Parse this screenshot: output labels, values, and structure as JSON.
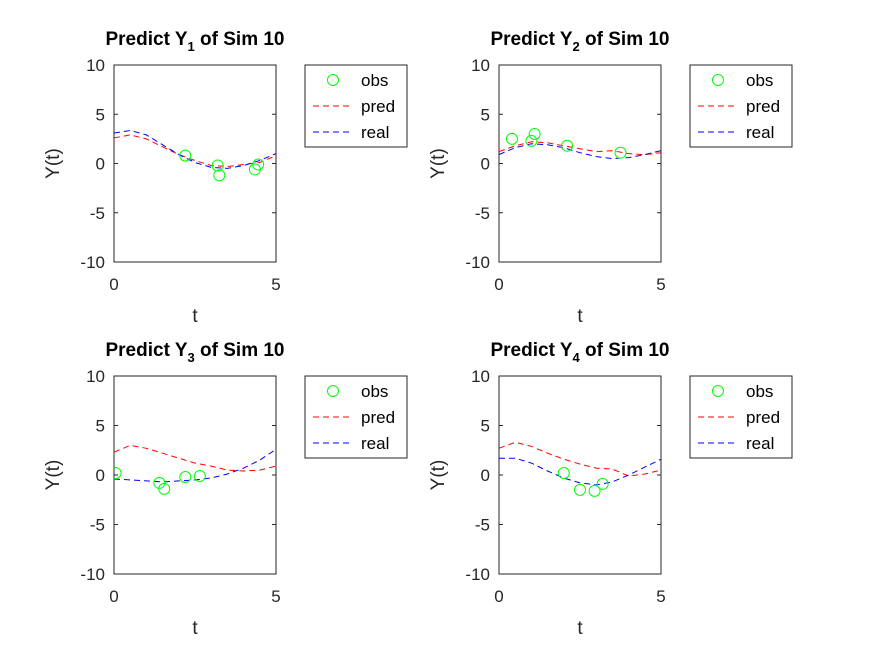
{
  "chart_data": [
    {
      "type": "line",
      "title": "Predict Y",
      "title_sub": "1",
      "title_suffix": " of Sim 10",
      "xlabel": "t",
      "ylabel": "Y(t)",
      "xlim": [
        0,
        5
      ],
      "ylim": [
        -10,
        10
      ],
      "xticks": [
        0,
        5
      ],
      "yticks": [
        10,
        5,
        0,
        -5,
        -10
      ],
      "grid": false,
      "legend_position": "outside-right",
      "series": [
        {
          "name": "obs",
          "kind": "scatter",
          "color": "#00ff00",
          "x": [
            2.2,
            3.2,
            3.25,
            4.35,
            4.45
          ],
          "y": [
            0.8,
            -0.2,
            -1.2,
            -0.6,
            -0.1
          ]
        },
        {
          "name": "pred",
          "kind": "dashed-line",
          "color": "#ff0000",
          "x": [
            0,
            0.5,
            1,
            1.5,
            2,
            2.5,
            3,
            3.5,
            4,
            4.5,
            5
          ],
          "y": [
            2.6,
            2.9,
            2.5,
            1.7,
            0.9,
            0.3,
            -0.2,
            -0.3,
            -0.1,
            0.1,
            0.8
          ]
        },
        {
          "name": "real",
          "kind": "dashed-line",
          "color": "#0000ff",
          "x": [
            0,
            0.5,
            1,
            1.5,
            2,
            2.5,
            3,
            3.5,
            4,
            4.5,
            5
          ],
          "y": [
            3.1,
            3.35,
            2.9,
            1.9,
            0.9,
            0.1,
            -0.4,
            -0.5,
            -0.2,
            0.3,
            1.0
          ]
        }
      ]
    },
    {
      "type": "line",
      "title": "Predict Y",
      "title_sub": "2",
      "title_suffix": " of Sim 10",
      "xlabel": "t",
      "ylabel": "Y(t)",
      "xlim": [
        0,
        5
      ],
      "ylim": [
        -10,
        10
      ],
      "xticks": [
        0,
        5
      ],
      "yticks": [
        10,
        5,
        0,
        -5,
        -10
      ],
      "grid": false,
      "legend_position": "outside-right",
      "series": [
        {
          "name": "obs",
          "kind": "scatter",
          "color": "#00ff00",
          "x": [
            0.4,
            1.0,
            1.1,
            2.1,
            3.75
          ],
          "y": [
            2.5,
            2.3,
            3.0,
            1.8,
            1.1
          ]
        },
        {
          "name": "pred",
          "kind": "dashed-line",
          "color": "#ff0000",
          "x": [
            0,
            0.5,
            1,
            1.5,
            2,
            2.5,
            3,
            3.5,
            4,
            4.5,
            5
          ],
          "y": [
            1.2,
            1.8,
            2.2,
            2.1,
            1.8,
            1.5,
            1.2,
            1.3,
            1.0,
            0.9,
            1.1
          ]
        },
        {
          "name": "real",
          "kind": "dashed-line",
          "color": "#0000ff",
          "x": [
            0,
            0.5,
            1,
            1.5,
            2,
            2.5,
            3,
            3.5,
            4,
            4.5,
            5
          ],
          "y": [
            0.9,
            1.6,
            2.0,
            1.9,
            1.6,
            1.1,
            0.7,
            0.5,
            0.6,
            0.9,
            1.3
          ]
        }
      ]
    },
    {
      "type": "line",
      "title": "Predict Y",
      "title_sub": "3",
      "title_suffix": " of Sim 10",
      "xlabel": "t",
      "ylabel": "Y(t)",
      "xlim": [
        0,
        5
      ],
      "ylim": [
        -10,
        10
      ],
      "xticks": [
        0,
        5
      ],
      "yticks": [
        10,
        5,
        0,
        -5,
        -10
      ],
      "grid": false,
      "legend_position": "outside-right",
      "series": [
        {
          "name": "obs",
          "kind": "scatter",
          "color": "#00ff00",
          "x": [
            0.05,
            1.4,
            1.55,
            2.2,
            2.65
          ],
          "y": [
            0.2,
            -0.8,
            -1.4,
            -0.2,
            -0.1
          ]
        },
        {
          "name": "pred",
          "kind": "dashed-line",
          "color": "#ff0000",
          "x": [
            0,
            0.5,
            1,
            1.5,
            2,
            2.5,
            3,
            3.5,
            4,
            4.5,
            5
          ],
          "y": [
            2.3,
            3.0,
            2.7,
            2.2,
            1.7,
            1.2,
            0.9,
            0.5,
            0.4,
            0.5,
            0.9
          ]
        },
        {
          "name": "real",
          "kind": "dashed-line",
          "color": "#0000ff",
          "x": [
            0,
            0.5,
            1,
            1.5,
            2,
            2.5,
            3,
            3.5,
            4,
            4.5,
            5
          ],
          "y": [
            -0.4,
            -0.5,
            -0.6,
            -0.7,
            -0.6,
            -0.5,
            -0.3,
            0.1,
            0.7,
            1.5,
            2.6
          ]
        }
      ]
    },
    {
      "type": "line",
      "title": "Predict Y",
      "title_sub": "4",
      "title_suffix": " of Sim 10",
      "xlabel": "t",
      "ylabel": "Y(t)",
      "xlim": [
        0,
        5
      ],
      "ylim": [
        -10,
        10
      ],
      "xticks": [
        0,
        5
      ],
      "yticks": [
        10,
        5,
        0,
        -5,
        -10
      ],
      "grid": false,
      "legend_position": "outside-right",
      "series": [
        {
          "name": "obs",
          "kind": "scatter",
          "color": "#00ff00",
          "x": [
            2.0,
            2.5,
            2.95,
            3.2
          ],
          "y": [
            0.2,
            -1.5,
            -1.6,
            -0.9
          ]
        },
        {
          "name": "pred",
          "kind": "dashed-line",
          "color": "#ff0000",
          "x": [
            0,
            0.5,
            1,
            1.5,
            2,
            2.5,
            3,
            3.5,
            4,
            4.5,
            5
          ],
          "y": [
            2.7,
            3.3,
            2.9,
            2.2,
            1.6,
            1.1,
            0.7,
            0.6,
            -0.1,
            0.1,
            0.5
          ]
        },
        {
          "name": "real",
          "kind": "dashed-line",
          "color": "#0000ff",
          "x": [
            0,
            0.5,
            1,
            1.5,
            2,
            2.5,
            3,
            3.5,
            4,
            4.5,
            5
          ],
          "y": [
            1.7,
            1.7,
            1.2,
            0.4,
            -0.3,
            -0.8,
            -1.0,
            -0.7,
            0.0,
            0.8,
            1.6
          ]
        }
      ]
    }
  ]
}
